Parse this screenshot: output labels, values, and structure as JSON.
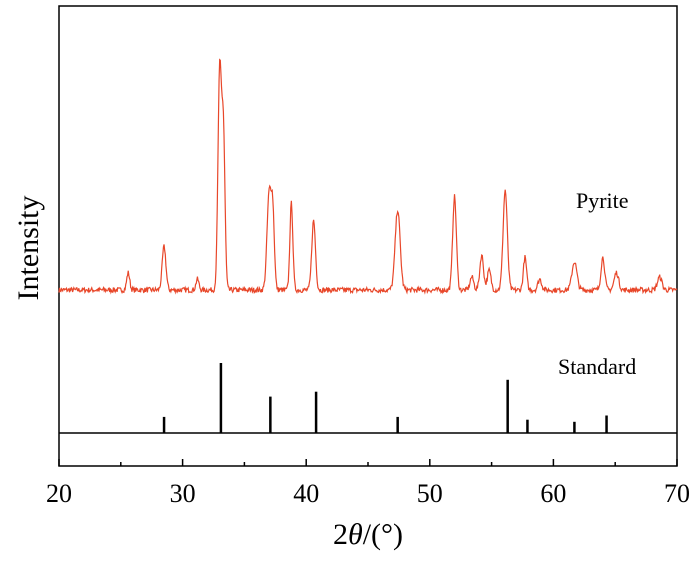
{
  "chart_data": {
    "type": "line",
    "xlabel_prefix": "2",
    "xlabel_theta": "θ",
    "xlabel_suffix": "/(°)",
    "ylabel": "Intensity",
    "xlim": [
      20,
      70
    ],
    "xticks": [
      20,
      30,
      40,
      50,
      60,
      70
    ],
    "grid": false,
    "series": [
      {
        "name": "Pyrite",
        "color": "#e8472a",
        "baseline": 0.07,
        "noise": 0.012,
        "peaks": [
          {
            "x": 25.6,
            "h": 0.08,
            "w": 0.12
          },
          {
            "x": 28.5,
            "h": 0.2,
            "w": 0.15
          },
          {
            "x": 31.2,
            "h": 0.05,
            "w": 0.12
          },
          {
            "x": 33.0,
            "h": 1.0,
            "w": 0.14
          },
          {
            "x": 33.3,
            "h": 0.72,
            "w": 0.13
          },
          {
            "x": 37.0,
            "h": 0.44,
            "w": 0.17
          },
          {
            "x": 37.3,
            "h": 0.33,
            "w": 0.13
          },
          {
            "x": 38.8,
            "h": 0.4,
            "w": 0.12
          },
          {
            "x": 40.6,
            "h": 0.32,
            "w": 0.15
          },
          {
            "x": 47.4,
            "h": 0.37,
            "w": 0.2
          },
          {
            "x": 52.0,
            "h": 0.43,
            "w": 0.15
          },
          {
            "x": 53.4,
            "h": 0.06,
            "w": 0.15
          },
          {
            "x": 54.2,
            "h": 0.16,
            "w": 0.15
          },
          {
            "x": 54.8,
            "h": 0.09,
            "w": 0.15
          },
          {
            "x": 56.1,
            "h": 0.46,
            "w": 0.17
          },
          {
            "x": 57.7,
            "h": 0.15,
            "w": 0.13
          },
          {
            "x": 58.9,
            "h": 0.05,
            "w": 0.15
          },
          {
            "x": 61.7,
            "h": 0.13,
            "w": 0.2
          },
          {
            "x": 64.0,
            "h": 0.15,
            "w": 0.15
          },
          {
            "x": 65.1,
            "h": 0.08,
            "w": 0.18
          },
          {
            "x": 68.6,
            "h": 0.06,
            "w": 0.18
          }
        ]
      },
      {
        "name": "Standard",
        "color": "#000000",
        "type": "stick",
        "x": [
          28.5,
          33.1,
          37.1,
          40.8,
          47.4,
          56.3,
          57.9,
          61.7,
          64.3
        ],
        "y": [
          0.23,
          1.0,
          0.52,
          0.59,
          0.23,
          0.76,
          0.19,
          0.16,
          0.25
        ]
      }
    ]
  }
}
